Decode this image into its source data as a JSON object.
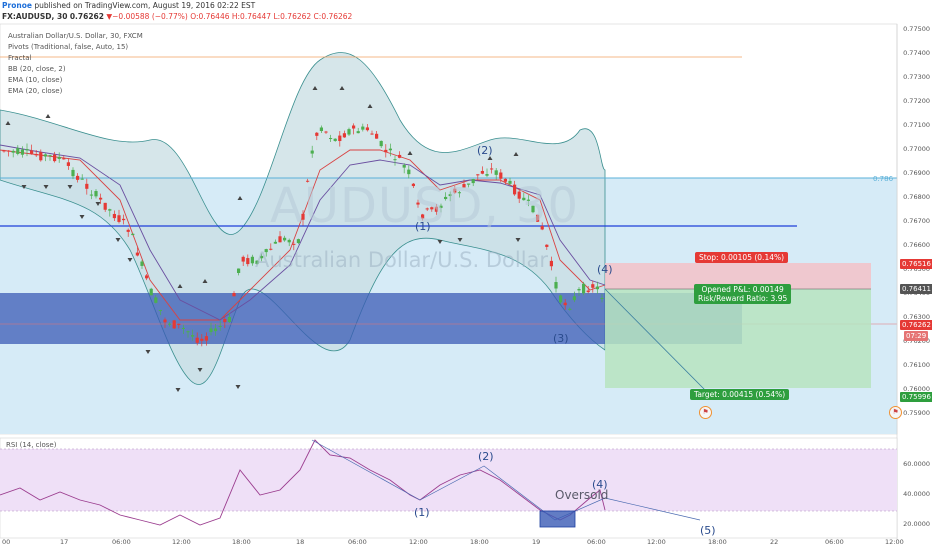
{
  "header": {
    "author": "Pronoe",
    "published": "published on TradingView.com, August 19, 2016 02:22 EST",
    "symbol": "FX:AUDUSD, 30",
    "price": "0.76262",
    "change": "▼−0.00588 (−0.77%)",
    "ohlc": "O:0.76446 H:0.76447 L:0.76262 C:0.76262"
  },
  "indicators": [
    "Australian Dollar/U.S. Dollar, 30, FXCM",
    "Pivots (Traditional, false, Auto, 15)",
    "Fractal",
    "BB (20, close, 2)",
    "EMA (10, close)",
    "EMA (20, close)"
  ],
  "watermark": {
    "symbol": "AUDUSD, 30",
    "name": "Australian Dollar/U.S. Dollar"
  },
  "price_axis": [
    "0.77500",
    "0.77400",
    "0.77300",
    "0.77200",
    "0.77100",
    "0.77000",
    "0.76900",
    "0.76800",
    "0.76700",
    "0.76600",
    "0.76500",
    "0.76400",
    "0.76300",
    "0.76200",
    "0.76100",
    "0.76000",
    "0.75900"
  ],
  "price_tags": {
    "stop": "0.76516",
    "current": "0.76411",
    "last": "0.76262",
    "countdown": "07:29",
    "target": "0.75996"
  },
  "fib_label": "0.786",
  "position": {
    "stop_label": "Stop: 0.00105 (0.14%)",
    "pnl_label": "Opened P&L: 0.00149",
    "rr_label": "Risk/Reward Ratio: 3.95",
    "target_label": "Target: 0.00415 (0.54%)"
  },
  "waves_price": [
    "(1)",
    "(2)",
    "(3)",
    "(4)"
  ],
  "rsi": {
    "title": "RSI (14, close)",
    "axis": [
      "60.0000",
      "40.0000",
      "20.0000"
    ],
    "waves": [
      "(1)",
      "(2)",
      "(4)",
      "(5)"
    ],
    "oversold_label": "Oversold"
  },
  "time_axis": [
    "00",
    "17",
    "06:00",
    "12:00",
    "18:00",
    "18",
    "06:00",
    "12:00",
    "18:00",
    "19",
    "06:00",
    "12:00",
    "18:00",
    "22",
    "06:00",
    "12:00"
  ],
  "colors": {
    "up_candle": "#4caf50",
    "down_candle": "#e53935",
    "bb": "#3a8f8f",
    "blue_zone": "#3b5bb5",
    "light_blue": "#cfe8f6",
    "stop_zone": "#f3c2c8",
    "target_zone": "#b7e4c0",
    "rsi_band": "#efe0f7"
  }
}
